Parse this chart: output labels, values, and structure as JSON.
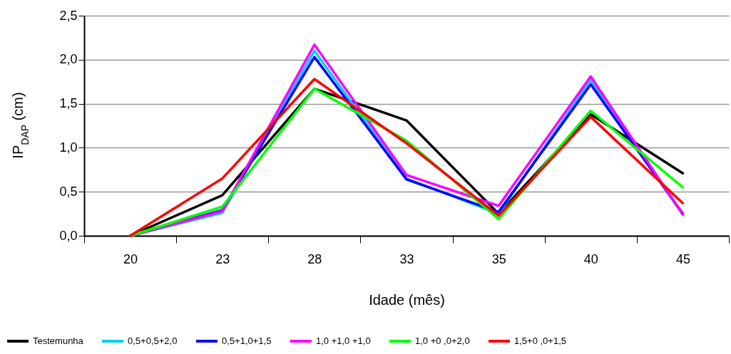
{
  "chart_data": {
    "type": "line",
    "xlabel": "Idade (mês)",
    "ylabel": "IP$_{DAP}$ (cm)",
    "categories": [
      "20",
      "23",
      "28",
      "33",
      "35",
      "40",
      "45"
    ],
    "series": [
      {
        "name": "Testemunha",
        "color": "#000000",
        "values": [
          0,
          0.46,
          1.67,
          1.31,
          0.25,
          1.38,
          0.71
        ]
      },
      {
        "name": "0,5+0,5+2,0",
        "color": "#00ccff",
        "values": [
          0,
          0.26,
          2.1,
          0.65,
          0.25,
          1.77,
          0.24
        ]
      },
      {
        "name": "0,5+1,0+1,5",
        "color": "#0000ff",
        "values": [
          0,
          0.29,
          2.03,
          0.64,
          0.27,
          1.72,
          0.25
        ]
      },
      {
        "name": "1,0 +1,0 +1,0",
        "color": "#ff00ff",
        "values": [
          0,
          0.28,
          2.17,
          0.69,
          0.34,
          1.81,
          0.24
        ]
      },
      {
        "name": "1,0 +0 ,0+2,0",
        "color": "#00ff00",
        "values": [
          0,
          0.33,
          1.67,
          1.08,
          0.19,
          1.42,
          0.55
        ]
      },
      {
        "name": "1,5+0 ,0+1,5",
        "color": "#ff0000",
        "values": [
          0,
          0.65,
          1.78,
          1.05,
          0.23,
          1.35,
          0.37
        ]
      }
    ],
    "ylim": [
      0,
      2.5
    ],
    "yticks": [
      {
        "value": 0,
        "label": "0,0"
      },
      {
        "value": 0.5,
        "label": "0,5"
      },
      {
        "value": 1,
        "label": "1,0"
      },
      {
        "value": 1.5,
        "label": "1,5"
      },
      {
        "value": 2,
        "label": "2,0"
      },
      {
        "value": 2.5,
        "label": "2,5"
      }
    ],
    "grid": "y",
    "legend": "bottom",
    "line_style": "solid"
  }
}
